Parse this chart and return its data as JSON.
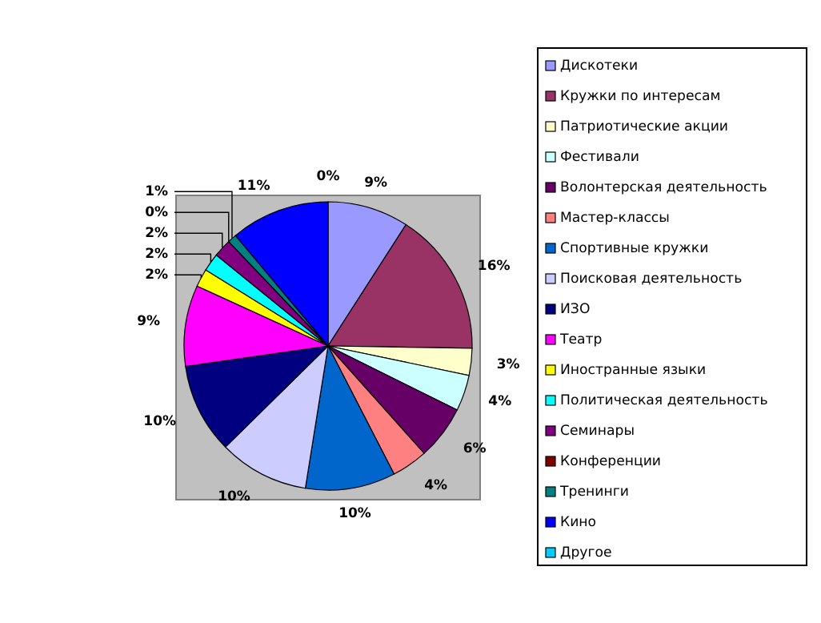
{
  "chart_data": {
    "type": "pie",
    "categories": [
      "Дискотеки",
      "Кружки по интересам",
      "Патриотические акции",
      "Фестивали",
      "Волонтерская деятельность",
      "Мастер-классы",
      "Спортивные кружки",
      "Поисковая деятельность",
      "ИЗО",
      "Театр",
      "Иностранные языки",
      "Политическая деятельность",
      "Семинары",
      "Конференции",
      "Тренинги",
      "Кино",
      "Другое"
    ],
    "values": [
      9,
      16,
      3,
      4,
      6,
      4,
      10,
      10,
      10,
      9,
      2,
      2,
      2,
      0,
      1,
      11,
      0
    ],
    "value_labels": [
      "9%",
      "16%",
      "3%",
      "4%",
      "6%",
      "4%",
      "10%",
      "10%",
      "10%",
      "9%",
      "2%",
      "2%",
      "2%",
      "0%",
      "1%",
      "11%",
      "0%"
    ],
    "colors": [
      "#9999ff",
      "#993366",
      "#ffffcc",
      "#ccffff",
      "#660066",
      "#ff8080",
      "#0066cc",
      "#ccccff",
      "#000080",
      "#ff00ff",
      "#ffff00",
      "#00ffff",
      "#800080",
      "#800000",
      "#008080",
      "#0000ff",
      "#00ccff"
    ],
    "legend": "right"
  }
}
